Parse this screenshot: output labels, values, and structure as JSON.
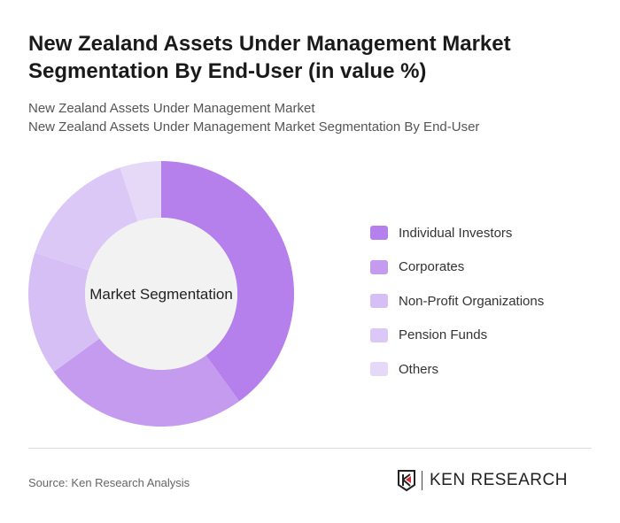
{
  "title": "New Zealand Assets Under Management Market Segmentation By End-User (in value %)",
  "subtitle1": "New Zealand Assets Under Management Market",
  "subtitle2": "New Zealand Assets Under Management Market Segmentation By End-User",
  "source": "Source: Ken Research Analysis",
  "logo_text": "KEN RESEARCH",
  "chart_data": {
    "type": "pie",
    "variant": "donut",
    "center_label": "Market Segmentation",
    "categories": [
      "Individual Investors",
      "Corporates",
      "Non-Profit Organizations",
      "Pension Funds",
      "Others"
    ],
    "values": [
      40,
      25,
      15,
      15,
      5
    ],
    "colors": [
      "#b57fec",
      "#c59bef",
      "#d6bff5",
      "#dcc8f6",
      "#e6d9f8"
    ],
    "legend_position": "right"
  }
}
